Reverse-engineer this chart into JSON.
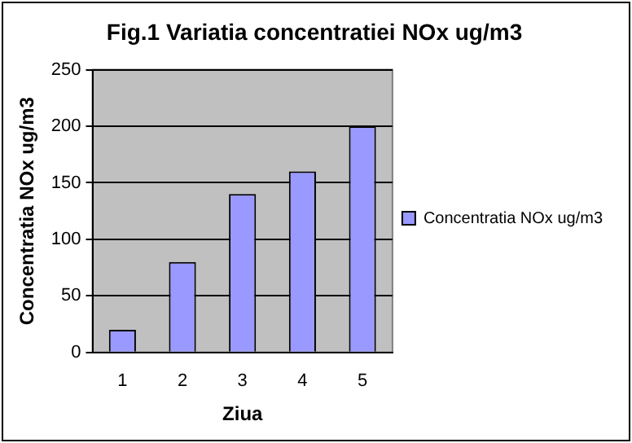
{
  "chart_data": {
    "type": "bar",
    "title": "Fig.1 Variatia concentratiei NOx ug/m3",
    "xlabel": "Ziua",
    "ylabel": "Concentratia NOx ug/m3",
    "categories": [
      "1",
      "2",
      "3",
      "4",
      "5"
    ],
    "series": [
      {
        "name": "Concentratia NOx ug/m3",
        "color": "#9999ff",
        "values": [
          20,
          80,
          140,
          160,
          200
        ]
      }
    ],
    "ylim": [
      0,
      250
    ],
    "yticks": [
      0,
      50,
      100,
      150,
      200,
      250
    ],
    "grid": "y",
    "legend": "right"
  }
}
